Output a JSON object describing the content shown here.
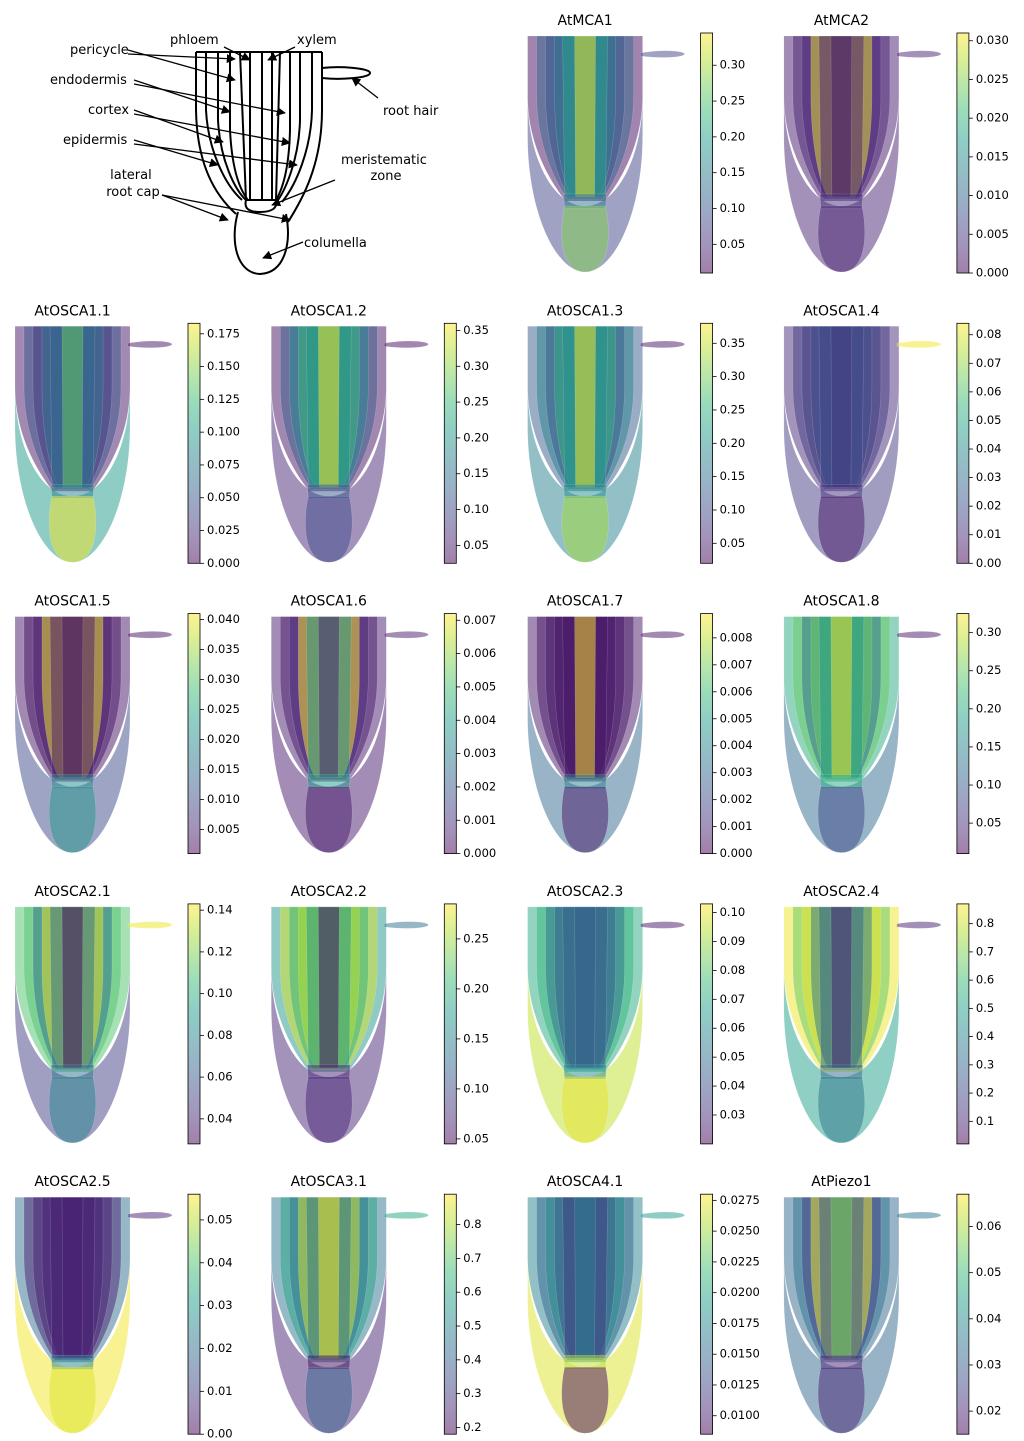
{
  "diagram": {
    "phloem": "phloem",
    "xylem": "xylem",
    "pericycle": "pericycle",
    "endodermis": "endodermis",
    "cortex": "cortex",
    "epidermis": "epidermis",
    "lateral_root_cap": [
      "lateral",
      "root cap"
    ],
    "meristematic_zone": [
      "meristematic",
      "zone"
    ],
    "root_hair": "root hair",
    "columella": "columella"
  },
  "chart_data": [
    {
      "type": "root-heatmap",
      "title": "AtMCA1",
      "values": {
        "phloem": 0.2,
        "xylem": 0.34,
        "pericycle": 0.15,
        "endodermis": 0.1,
        "cortex": 0.12,
        "epidermis": 0.02,
        "lateral_root_cap": 0.08,
        "meristematic_zone": 0.14,
        "root_hair": 0.08,
        "columella": 0.28
      },
      "colorbar": {
        "lim": [
          0.01,
          0.345
        ],
        "ticks": [
          0.05,
          {
            "value": 0.1,
            "label": "0.10"
          },
          0.15,
          {
            "value": 0.2,
            "label": "0.20"
          },
          0.25,
          {
            "value": 0.3,
            "label": "0.30"
          }
        ]
      }
    },
    {
      "type": "root-heatmap",
      "title": "AtMCA2",
      "values": {
        "phloem": 0.003,
        "xylem": 0.002,
        "pericycle": 0.03,
        "endodermis": 0.003,
        "cortex": 0.003,
        "epidermis": 0.002,
        "lateral_root_cap": 0.003,
        "meristematic_zone": 0.004,
        "root_hair": 0.003,
        "columella": 0.003
      },
      "colorbar": {
        "lim": [
          0,
          0.031
        ],
        "ticks": [
          {
            "value": 0,
            "label": "0.000"
          },
          0.005,
          {
            "value": 0.01,
            "label": "0.010"
          },
          0.015,
          {
            "value": 0.02,
            "label": "0.020"
          },
          0.025,
          {
            "value": 0.03,
            "label": "0.030"
          }
        ]
      }
    },
    {
      "type": "root-heatmap",
      "title": "AtOSCA1.1",
      "values": {
        "phloem": 0.06,
        "xylem": 0.14,
        "pericycle": 0.07,
        "endodermis": 0.03,
        "cortex": 0.05,
        "epidermis": 0.01,
        "lateral_root_cap": 0.1,
        "meristematic_zone": 0.08,
        "root_hair": 0.01,
        "columella": 0.18
      },
      "colorbar": {
        "lim": [
          0,
          0.183
        ],
        "ticks": [
          {
            "value": 0,
            "label": "0.000"
          },
          0.025,
          {
            "value": 0.05,
            "label": "0.050"
          },
          0.075,
          {
            "value": 0.1,
            "label": "0.100"
          },
          0.125,
          {
            "value": 0.15,
            "label": "0.150"
          },
          0.175
        ]
      }
    },
    {
      "type": "root-heatmap",
      "title": "AtOSCA1.2",
      "values": {
        "phloem": 0.2,
        "xylem": 0.36,
        "pericycle": 0.25,
        "endodermis": 0.18,
        "cortex": 0.12,
        "epidermis": 0.04,
        "lateral_root_cap": 0.06,
        "meristematic_zone": 0.12,
        "root_hair": 0.04,
        "columella": 0.1
      },
      "colorbar": {
        "lim": [
          0.025,
          0.36
        ],
        "ticks": [
          0.05,
          {
            "value": 0.1,
            "label": "0.10"
          },
          0.15,
          {
            "value": 0.2,
            "label": "0.20"
          },
          0.25,
          {
            "value": 0.3,
            "label": "0.30"
          },
          0.35
        ]
      }
    },
    {
      "type": "root-heatmap",
      "title": "AtOSCA1.3",
      "values": {
        "phloem": 0.2,
        "xylem": 0.38,
        "pericycle": 0.25,
        "endodermis": 0.12,
        "cortex": 0.18,
        "epidermis": 0.12,
        "lateral_root_cap": 0.18,
        "meristematic_zone": 0.2,
        "root_hair": 0.04,
        "columella": 0.33
      },
      "colorbar": {
        "lim": [
          0.02,
          0.38
        ],
        "ticks": [
          0.05,
          {
            "value": 0.1,
            "label": "0.10"
          },
          0.15,
          {
            "value": 0.2,
            "label": "0.20"
          },
          0.25,
          {
            "value": 0.3,
            "label": "0.30"
          },
          0.35
        ]
      }
    },
    {
      "type": "root-heatmap",
      "title": "AtOSCA1.4",
      "values": {
        "phloem": 0.018,
        "xylem": 0.015,
        "pericycle": 0.02,
        "endodermis": 0.016,
        "cortex": 0.015,
        "epidermis": 0.01,
        "lateral_root_cap": 0.015,
        "meristematic_zone": 0.012,
        "root_hair": 0.083,
        "columella": 0.005
      },
      "colorbar": {
        "lim": [
          0,
          0.084
        ],
        "ticks": [
          {
            "value": 0,
            "label": "0.00"
          },
          0.01,
          0.02,
          0.03,
          0.04,
          0.05,
          0.06,
          0.07,
          0.08
        ]
      }
    },
    {
      "type": "root-heatmap",
      "title": "AtOSCA1.5",
      "values": {
        "phloem": 0.004,
        "xylem": 0.003,
        "pericycle": 0.04,
        "endodermis": 0.004,
        "cortex": 0.003,
        "epidermis": 0.003,
        "lateral_root_cap": 0.01,
        "meristematic_zone": 0.02,
        "root_hair": 0.003,
        "columella": 0.022
      },
      "colorbar": {
        "lim": [
          0.001,
          0.041
        ],
        "ticks": [
          0.005,
          {
            "value": 0.01,
            "label": "0.010"
          },
          0.015,
          {
            "value": 0.02,
            "label": "0.020"
          },
          0.025,
          {
            "value": 0.03,
            "label": "0.030"
          },
          0.035,
          {
            "value": 0.04,
            "label": "0.040"
          }
        ]
      }
    },
    {
      "type": "root-heatmap",
      "title": "AtOSCA1.6",
      "values": {
        "phloem": 0.004,
        "xylem": 0.0007,
        "pericycle": 0.0072,
        "endodermis": 0.0008,
        "cortex": 0.0005,
        "epidermis": 0.0005,
        "lateral_root_cap": 0.0005,
        "meristematic_zone": 0.004,
        "root_hair": 0.0005,
        "columella": 0.0005
      },
      "colorbar": {
        "lim": [
          0,
          0.0072
        ],
        "ticks": [
          {
            "value": 0,
            "label": "0.000"
          },
          0.001,
          0.002,
          0.003,
          0.004,
          0.005,
          0.006,
          0.007
        ]
      }
    },
    {
      "type": "root-heatmap",
      "title": "AtOSCA1.7",
      "values": {
        "phloem": 0.0005,
        "xylem": 0.0089,
        "pericycle": 0.0005,
        "endodermis": 0.0005,
        "cortex": 0.0005,
        "epidermis": 0.0005,
        "lateral_root_cap": 0.003,
        "meristematic_zone": 0.004,
        "root_hair": 0.0005,
        "columella": 0.0005
      },
      "colorbar": {
        "lim": [
          0,
          0.0089
        ],
        "ticks": [
          {
            "value": 0,
            "label": "0.000"
          },
          0.001,
          0.002,
          0.003,
          0.004,
          0.005,
          0.006,
          0.007,
          0.008
        ]
      }
    },
    {
      "type": "root-heatmap",
      "title": "AtOSCA1.8",
      "values": {
        "phloem": 0.18,
        "xylem": 0.32,
        "pericycle": 0.25,
        "endodermis": 0.12,
        "cortex": 0.25,
        "epidermis": 0.2,
        "lateral_root_cap": 0.12,
        "meristematic_zone": 0.2,
        "root_hair": 0.03,
        "columella": 0.08
      },
      "colorbar": {
        "lim": [
          0.01,
          0.325
        ],
        "ticks": [
          0.05,
          {
            "value": 0.1,
            "label": "0.10"
          },
          0.15,
          {
            "value": 0.2,
            "label": "0.20"
          },
          0.25,
          {
            "value": 0.3,
            "label": "0.30"
          }
        ]
      }
    },
    {
      "type": "root-heatmap",
      "title": "AtOSCA2.1",
      "values": {
        "phloem": 0.07,
        "xylem": 0.03,
        "pericycle": 0.14,
        "endodermis": 0.07,
        "cortex": 0.11,
        "epidermis": 0.11,
        "lateral_root_cap": 0.05,
        "meristematic_zone": 0.07,
        "root_hair": 0.14,
        "columella": 0.08
      },
      "colorbar": {
        "lim": [
          0.028,
          0.143
        ],
        "ticks": [
          0.04,
          0.06,
          0.08,
          {
            "value": 0.1,
            "label": "0.10"
          },
          0.12,
          0.14
        ]
      }
    },
    {
      "type": "root-heatmap",
      "title": "AtOSCA2.2",
      "values": {
        "phloem": 0.17,
        "xylem": 0.05,
        "pericycle": 0.26,
        "endodermis": 0.2,
        "cortex": 0.27,
        "epidermis": 0.17,
        "lateral_root_cap": 0.07,
        "meristematic_zone": 0.07,
        "root_hair": 0.13,
        "columella": 0.07
      },
      "colorbar": {
        "lim": [
          0.045,
          0.285
        ],
        "ticks": [
          0.05,
          {
            "value": 0.1,
            "label": "0.10"
          },
          0.15,
          {
            "value": 0.2,
            "label": "0.20"
          },
          0.25
        ]
      }
    },
    {
      "type": "root-heatmap",
      "title": "AtOSCA2.3",
      "values": {
        "phloem": 0.045,
        "xylem": 0.045,
        "pericycle": 0.045,
        "endodermis": 0.05,
        "cortex": 0.075,
        "epidermis": 0.07,
        "lateral_root_cap": 0.095,
        "meristematic_zone": 0.06,
        "root_hair": 0.025,
        "columella": 0.1
      },
      "colorbar": {
        "lim": [
          0.02,
          0.103
        ],
        "ticks": [
          0.03,
          0.04,
          0.05,
          0.06,
          0.07,
          0.08,
          0.09,
          {
            "value": 0.1,
            "label": "0.10"
          }
        ]
      }
    },
    {
      "type": "root-heatmap",
      "title": "AtOSCA2.4",
      "values": {
        "phloem": 0.3,
        "xylem": 0.1,
        "pericycle": 0.35,
        "endodermis": 0.85,
        "cortex": 0.65,
        "epidermis": 0.85,
        "lateral_root_cap": 0.5,
        "meristematic_zone": 0.3,
        "root_hair": 0.1,
        "columella": 0.35
      },
      "colorbar": {
        "lim": [
          0.02,
          0.87
        ],
        "ticks": [
          0.1,
          0.2,
          0.3,
          0.4,
          0.5,
          0.6,
          0.7,
          0.8
        ]
      }
    },
    {
      "type": "root-heatmap",
      "title": "AtOSCA2.5",
      "values": {
        "phloem": 0.005,
        "xylem": 0.005,
        "pericycle": 0.005,
        "endodermis": 0.005,
        "cortex": 0.005,
        "epidermis": 0.02,
        "lateral_root_cap": 0.055,
        "meristematic_zone": 0.025,
        "root_hair": 0.005,
        "columella": 0.053
      },
      "colorbar": {
        "lim": [
          0,
          0.056
        ],
        "ticks": [
          {
            "value": 0,
            "label": "0.00"
          },
          0.01,
          0.02,
          0.03,
          0.04,
          0.05
        ]
      }
    },
    {
      "type": "root-heatmap",
      "title": "AtOSCA3.1",
      "values": {
        "phloem": 0.45,
        "xylem": 0.88,
        "pericycle": 0.85,
        "endodermis": 0.45,
        "cortex": 0.6,
        "epidermis": 0.45,
        "lateral_root_cap": 0.25,
        "meristematic_zone": 0.2,
        "root_hair": 0.6,
        "columella": 0.4
      },
      "colorbar": {
        "lim": [
          0.18,
          0.89
        ],
        "ticks": [
          0.2,
          0.3,
          0.4,
          0.5,
          0.6,
          0.7,
          0.8
        ]
      }
    },
    {
      "type": "root-heatmap",
      "title": "AtOSCA4.1",
      "values": {
        "phloem": 0.012,
        "xylem": 0.017,
        "pericycle": 0.014,
        "endodermis": 0.018,
        "cortex": 0.015,
        "epidermis": 0.017,
        "lateral_root_cap": 0.027,
        "meristematic_zone": 0.026,
        "root_hair": 0.019,
        "columella": 0.009
      },
      "colorbar": {
        "lim": [
          0.0085,
          0.028
        ],
        "ticks": [
          {
            "value": 0.01,
            "label": "0.0100"
          },
          0.0125,
          {
            "value": 0.015,
            "label": "0.0150"
          },
          0.0175,
          {
            "value": 0.02,
            "label": "0.0200"
          },
          0.0225,
          {
            "value": 0.025,
            "label": "0.0250"
          },
          0.0275
        ]
      }
    },
    {
      "type": "root-heatmap",
      "title": "AtPiezo1",
      "values": {
        "phloem": 0.03,
        "xylem": 0.055,
        "pericycle": 0.066,
        "endodermis": 0.025,
        "cortex": 0.035,
        "epidermis": 0.032,
        "lateral_root_cap": 0.032,
        "meristematic_zone": 0.02,
        "root_hair": 0.035,
        "columella": 0.02
      },
      "colorbar": {
        "lim": [
          0.015,
          0.067
        ],
        "ticks": [
          0.02,
          0.03,
          0.04,
          0.05,
          0.06
        ]
      }
    }
  ]
}
